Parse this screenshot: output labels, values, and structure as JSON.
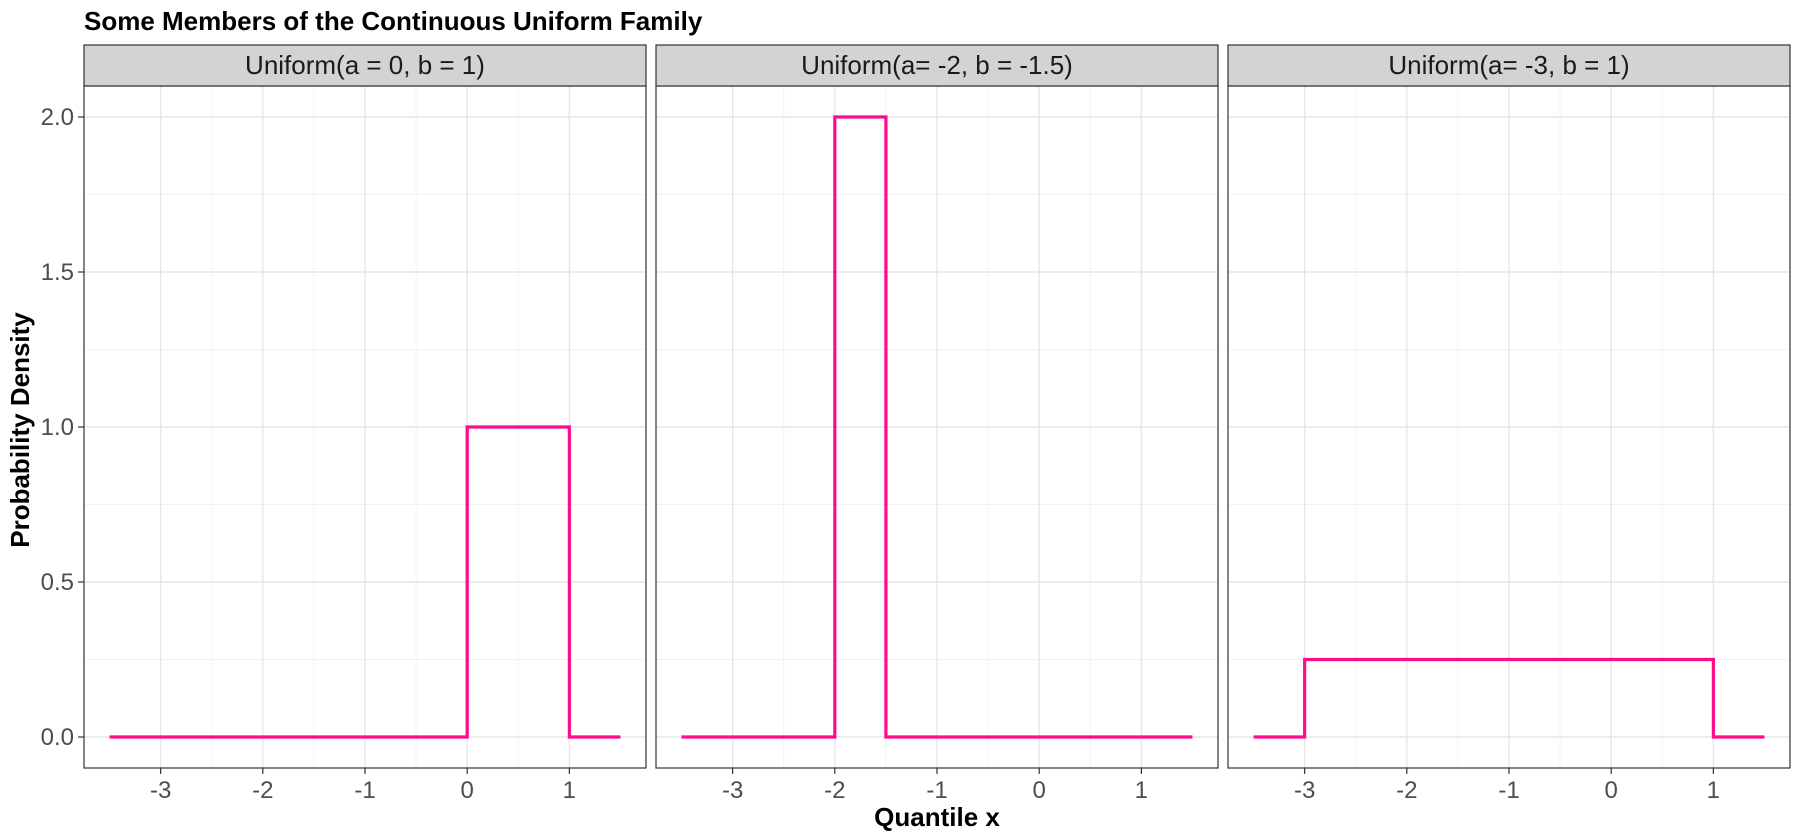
{
  "chart_data": {
    "type": "line",
    "title": "Some Members of the Continuous Uniform Family",
    "xlabel": "Quantile x",
    "ylabel": "Probability Density",
    "xlim": [
      -3.5,
      1.5
    ],
    "ylim": [
      0,
      2
    ],
    "x_ticks": [
      -3,
      -2,
      -1,
      0,
      1
    ],
    "y_ticks": [
      0.0,
      0.5,
      1.0,
      1.5,
      2.0
    ],
    "y_tick_labels": [
      "0.0",
      "0.5",
      "1.0",
      "1.5",
      "2.0"
    ],
    "grid": true,
    "line_color": "#ff0a8c",
    "panels": [
      {
        "label": "Uniform(a = 0, b = 1)",
        "x": [
          -3.5,
          0,
          0,
          1,
          1,
          1.5
        ],
        "y": [
          0,
          0,
          1,
          1,
          0,
          0
        ]
      },
      {
        "label": "Uniform(a= -2, b = -1.5)",
        "x": [
          -3.5,
          -2,
          -2,
          -1.5,
          -1.5,
          1.5
        ],
        "y": [
          0,
          0,
          2,
          2,
          0,
          0
        ]
      },
      {
        "label": "Uniform(a= -3, b = 1)",
        "x": [
          -3.5,
          -3,
          -3,
          1,
          1,
          1.5
        ],
        "y": [
          0,
          0,
          0.25,
          0.25,
          0,
          0
        ]
      }
    ]
  }
}
